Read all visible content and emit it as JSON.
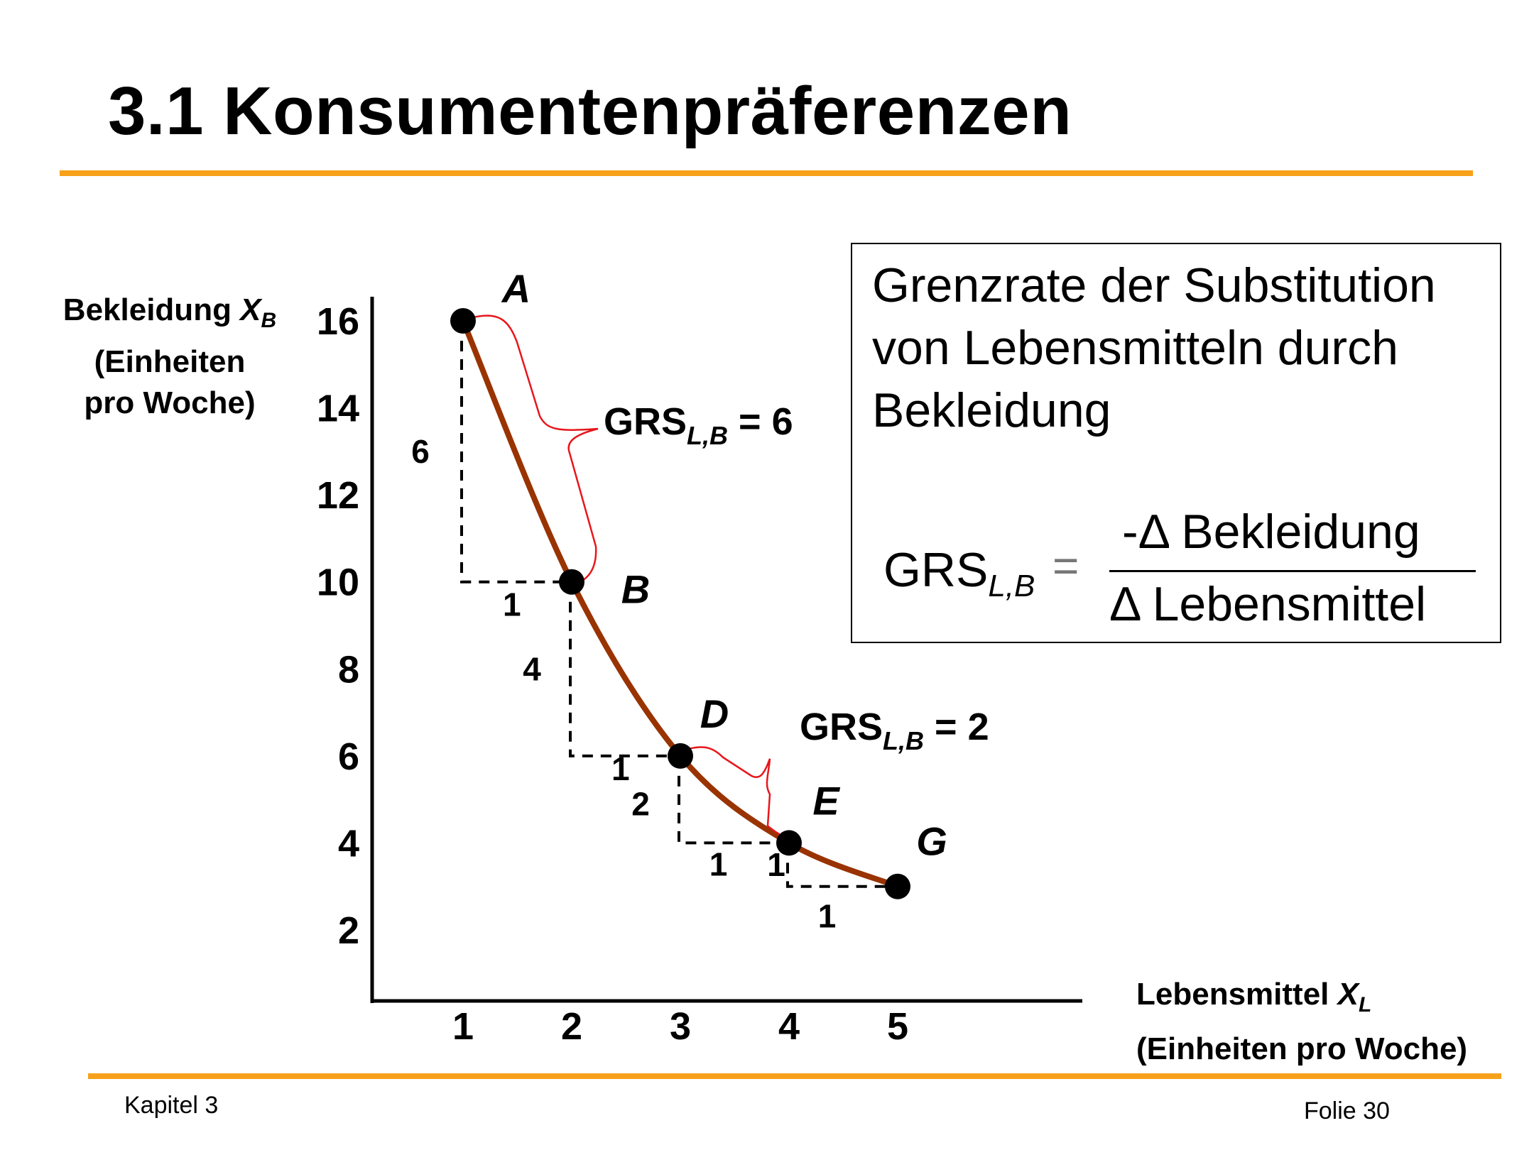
{
  "slide": {
    "title": "3.1 Konsumentenpräferenzen",
    "footer_left": "Kapitel 3",
    "footer_right": "Folie 30",
    "accent_color": "#f7a11a"
  },
  "axes": {
    "y_label_line1_text": "Bekleidung ",
    "y_label_var": "X",
    "y_label_sub": "B",
    "y_label_line2": "(Einheiten",
    "y_label_line3": "pro Woche)",
    "x_label_line1_text": "Lebensmittel ",
    "x_label_var": "X",
    "x_label_sub": "L",
    "x_label_line2": "(Einheiten pro Woche)"
  },
  "definition_box": {
    "line1": "Grenzrate der Substitution",
    "line2": "von Lebensmitteln durch",
    "line3": "Bekleidung",
    "formula_lhs": "GRS",
    "formula_sub": "L,B",
    "formula_eq": "=",
    "formula_numerator": "-Δ Bekleidung",
    "formula_denominator": "Δ Lebensmittel"
  },
  "chart_data": {
    "type": "line",
    "series": [
      {
        "values": [
          [
            1,
            16
          ],
          [
            2,
            10
          ],
          [
            3,
            6
          ],
          [
            4,
            4
          ],
          [
            5,
            3
          ]
        ]
      }
    ],
    "x_ticks": [
      1,
      2,
      3,
      4,
      5
    ],
    "y_ticks": [
      2,
      4,
      6,
      8,
      10,
      12,
      14,
      16
    ],
    "xlim": [
      0,
      5.9
    ],
    "ylim": [
      0,
      16.5
    ],
    "grid": false,
    "curve_color": "#993300",
    "brace_color": "#e8161b",
    "points": [
      {
        "label": "A",
        "x": 1,
        "y": 16
      },
      {
        "label": "B",
        "x": 2,
        "y": 10
      },
      {
        "label": "D",
        "x": 3,
        "y": 6
      },
      {
        "label": "E",
        "x": 4,
        "y": 4
      },
      {
        "label": "G",
        "x": 5,
        "y": 3
      }
    ],
    "steps": [
      {
        "from": "A",
        "to": "B",
        "dy_label": "6",
        "dx_label": "1"
      },
      {
        "from": "B",
        "to": "D",
        "dy_label": "4",
        "dx_label": "1"
      },
      {
        "from": "D",
        "to": "E",
        "dy_label": "2",
        "dx_label": "1"
      },
      {
        "from": "E",
        "to": "G",
        "dy_label": "1",
        "dx_label": "1"
      }
    ],
    "annotations": [
      {
        "text": "GRS",
        "sub": "L,B",
        "rest": " = 6",
        "between": [
          "A",
          "B"
        ]
      },
      {
        "text": "GRS",
        "sub": "L,B",
        "rest": " = 2",
        "between": [
          "D",
          "E"
        ]
      }
    ]
  }
}
